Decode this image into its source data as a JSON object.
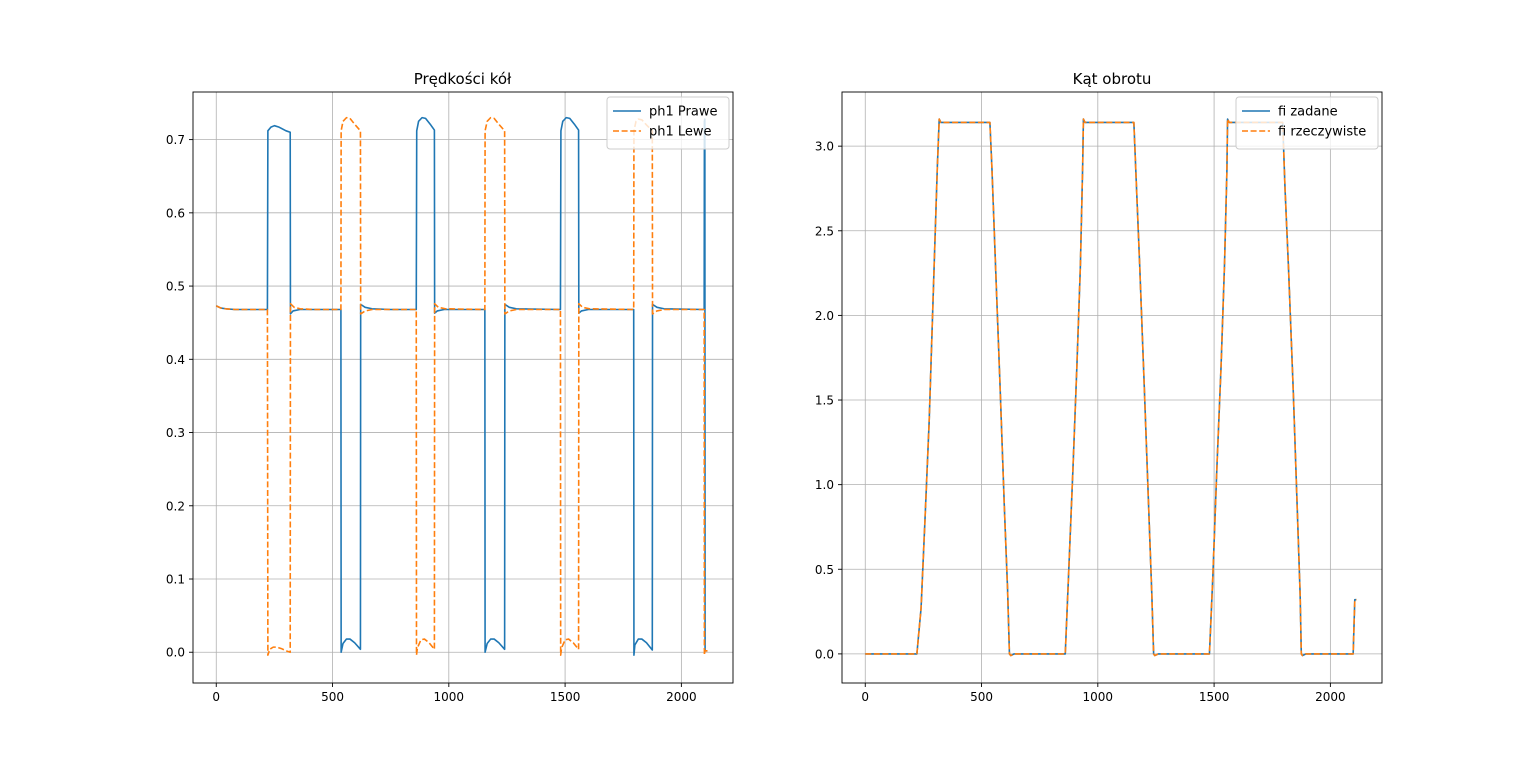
{
  "figure": {
    "background": "#ffffff"
  },
  "chart_data": [
    {
      "type": "line",
      "title": "Prędkości kół",
      "xlabel": "",
      "ylabel": "",
      "xlim": [
        -100,
        2222
      ],
      "ylim": [
        -0.042,
        0.765
      ],
      "xticks": [
        0,
        500,
        1000,
        1500,
        2000
      ],
      "xtick_labels": [
        "0",
        "500",
        "1000",
        "1500",
        "2000"
      ],
      "yticks": [
        0.0,
        0.1,
        0.2,
        0.3,
        0.4,
        0.5,
        0.6,
        0.7
      ],
      "ytick_labels": [
        "0.0",
        "0.1",
        "0.2",
        "0.3",
        "0.4",
        "0.5",
        "0.6",
        "0.7"
      ],
      "grid": true,
      "legend_position": "top-right",
      "series": [
        {
          "name": "ph1 Prawe",
          "color": "#1f77b4",
          "style": "solid",
          "points": [
            [
              0,
              0.473
            ],
            [
              20,
              0.47
            ],
            [
              40,
              0.469
            ],
            [
              80,
              0.468
            ],
            [
              220,
              0.468
            ],
            [
              222,
              0.712
            ],
            [
              235,
              0.717
            ],
            [
              250,
              0.719
            ],
            [
              270,
              0.717
            ],
            [
              300,
              0.712
            ],
            [
              318,
              0.71
            ],
            [
              319,
              0.462
            ],
            [
              330,
              0.466
            ],
            [
              360,
              0.468
            ],
            [
              536,
              0.468
            ],
            [
              537,
              0.0
            ],
            [
              545,
              0.012
            ],
            [
              560,
              0.018
            ],
            [
              575,
              0.018
            ],
            [
              595,
              0.013
            ],
            [
              620,
              0.004
            ],
            [
              621,
              0.475
            ],
            [
              640,
              0.471
            ],
            [
              670,
              0.469
            ],
            [
              750,
              0.468
            ],
            [
              860,
              0.468
            ],
            [
              862,
              0.712
            ],
            [
              870,
              0.725
            ],
            [
              885,
              0.73
            ],
            [
              900,
              0.729
            ],
            [
              920,
              0.721
            ],
            [
              938,
              0.713
            ],
            [
              939,
              0.463
            ],
            [
              950,
              0.466
            ],
            [
              980,
              0.468
            ],
            [
              1155,
              0.468
            ],
            [
              1156,
              0.0
            ],
            [
              1165,
              0.012
            ],
            [
              1180,
              0.018
            ],
            [
              1195,
              0.018
            ],
            [
              1215,
              0.013
            ],
            [
              1240,
              0.004
            ],
            [
              1241,
              0.475
            ],
            [
              1260,
              0.471
            ],
            [
              1290,
              0.469
            ],
            [
              1480,
              0.468
            ],
            [
              1482,
              0.712
            ],
            [
              1490,
              0.725
            ],
            [
              1505,
              0.73
            ],
            [
              1520,
              0.729
            ],
            [
              1540,
              0.721
            ],
            [
              1558,
              0.713
            ],
            [
              1559,
              0.463
            ],
            [
              1570,
              0.466
            ],
            [
              1600,
              0.468
            ],
            [
              1795,
              0.468
            ],
            [
              1796,
              -0.004
            ],
            [
              1800,
              0.01
            ],
            [
              1815,
              0.018
            ],
            [
              1830,
              0.018
            ],
            [
              1850,
              0.013
            ],
            [
              1875,
              0.003
            ],
            [
              1876,
              0.475
            ],
            [
              1895,
              0.471
            ],
            [
              1925,
              0.469
            ],
            [
              2098,
              0.468
            ],
            [
              2099,
              0.725
            ],
            [
              2101,
              0.728
            ],
            [
              2102,
              0.002
            ],
            [
              2112,
              0.002
            ]
          ]
        },
        {
          "name": "ph1 Lewe",
          "color": "#ff7f0e",
          "style": "dashed",
          "points": [
            [
              0,
              0.473
            ],
            [
              20,
              0.47
            ],
            [
              40,
              0.469
            ],
            [
              80,
              0.468
            ],
            [
              220,
              0.468
            ],
            [
              222,
              -0.004
            ],
            [
              230,
              0.004
            ],
            [
              245,
              0.007
            ],
            [
              260,
              0.007
            ],
            [
              280,
              0.005
            ],
            [
              300,
              0.002
            ],
            [
              318,
              0.0
            ],
            [
              319,
              0.476
            ],
            [
              335,
              0.471
            ],
            [
              360,
              0.469
            ],
            [
              420,
              0.468
            ],
            [
              536,
              0.468
            ],
            [
              537,
              0.712
            ],
            [
              545,
              0.725
            ],
            [
              560,
              0.73
            ],
            [
              575,
              0.729
            ],
            [
              595,
              0.721
            ],
            [
              620,
              0.712
            ],
            [
              621,
              0.462
            ],
            [
              640,
              0.466
            ],
            [
              670,
              0.468
            ],
            [
              860,
              0.468
            ],
            [
              861,
              -0.004
            ],
            [
              865,
              0.006
            ],
            [
              880,
              0.017
            ],
            [
              895,
              0.018
            ],
            [
              915,
              0.013
            ],
            [
              938,
              0.004
            ],
            [
              939,
              0.476
            ],
            [
              955,
              0.471
            ],
            [
              985,
              0.469
            ],
            [
              1155,
              0.468
            ],
            [
              1156,
              0.712
            ],
            [
              1165,
              0.725
            ],
            [
              1180,
              0.73
            ],
            [
              1195,
              0.729
            ],
            [
              1215,
              0.721
            ],
            [
              1240,
              0.712
            ],
            [
              1241,
              0.462
            ],
            [
              1260,
              0.466
            ],
            [
              1290,
              0.468
            ],
            [
              1480,
              0.468
            ],
            [
              1481,
              -0.004
            ],
            [
              1485,
              0.006
            ],
            [
              1500,
              0.017
            ],
            [
              1515,
              0.018
            ],
            [
              1535,
              0.013
            ],
            [
              1558,
              0.004
            ],
            [
              1559,
              0.476
            ],
            [
              1575,
              0.471
            ],
            [
              1605,
              0.469
            ],
            [
              1795,
              0.468
            ],
            [
              1796,
              0.712
            ],
            [
              1805,
              0.725
            ],
            [
              1815,
              0.728
            ],
            [
              1830,
              0.727
            ],
            [
              1850,
              0.72
            ],
            [
              1875,
              0.712
            ],
            [
              1876,
              0.462
            ],
            [
              1895,
              0.466
            ],
            [
              1925,
              0.468
            ],
            [
              2098,
              0.468
            ],
            [
              2099,
              -0.004
            ],
            [
              2101,
              0.002
            ],
            [
              2112,
              0.002
            ]
          ]
        }
      ]
    },
    {
      "type": "line",
      "title": "Kąt obrotu",
      "xlabel": "",
      "ylabel": "",
      "xlim": [
        -100,
        2222
      ],
      "ylim": [
        -0.172,
        3.32
      ],
      "xticks": [
        0,
        500,
        1000,
        1500,
        2000
      ],
      "xtick_labels": [
        "0",
        "500",
        "1000",
        "1500",
        "2000"
      ],
      "yticks": [
        0.0,
        0.5,
        1.0,
        1.5,
        2.0,
        2.5,
        3.0
      ],
      "ytick_labels": [
        "0.0",
        "0.5",
        "1.0",
        "1.5",
        "2.0",
        "2.5",
        "3.0"
      ],
      "grid": true,
      "legend_position": "top-right",
      "series": [
        {
          "name": "fi zadane",
          "color": "#1f77b4",
          "style": "solid",
          "points": [
            [
              0,
              0
            ],
            [
              222,
              0
            ],
            [
              240,
              0.27
            ],
            [
              258,
              0.83
            ],
            [
              275,
              1.38
            ],
            [
              295,
              2.24
            ],
            [
              310,
              2.88
            ],
            [
              318,
              3.16
            ],
            [
              325,
              3.14
            ],
            [
              536,
              3.14
            ],
            [
              545,
              2.86
            ],
            [
              560,
              2.3
            ],
            [
              580,
              1.57
            ],
            [
              598,
              0.87
            ],
            [
              612,
              0.38
            ],
            [
              620,
              0.0
            ],
            [
              626,
              -0.01
            ],
            [
              640,
              0.0
            ],
            [
              860,
              0.0
            ],
            [
              875,
              0.49
            ],
            [
              893,
              1.09
            ],
            [
              910,
              1.7
            ],
            [
              925,
              2.29
            ],
            [
              935,
              2.89
            ],
            [
              938,
              3.16
            ],
            [
              945,
              3.14
            ],
            [
              1155,
              3.14
            ],
            [
              1165,
              2.8
            ],
            [
              1180,
              2.3
            ],
            [
              1200,
              1.57
            ],
            [
              1218,
              0.89
            ],
            [
              1232,
              0.36
            ],
            [
              1240,
              0.0
            ],
            [
              1245,
              -0.01
            ],
            [
              1260,
              0.0
            ],
            [
              1480,
              0.0
            ],
            [
              1495,
              0.47
            ],
            [
              1512,
              1.1
            ],
            [
              1530,
              1.7
            ],
            [
              1545,
              2.31
            ],
            [
              1555,
              2.85
            ],
            [
              1558,
              3.16
            ],
            [
              1565,
              3.14
            ],
            [
              1795,
              3.14
            ],
            [
              1805,
              2.75
            ],
            [
              1820,
              2.28
            ],
            [
              1840,
              1.57
            ],
            [
              1858,
              0.84
            ],
            [
              1870,
              0.35
            ],
            [
              1875,
              0.0
            ],
            [
              1880,
              -0.01
            ],
            [
              1895,
              0.0
            ],
            [
              2098,
              0.0
            ],
            [
              2105,
              0.32
            ],
            [
              2112,
              0.32
            ]
          ]
        },
        {
          "name": "fi rzeczywiste",
          "color": "#ff7f0e",
          "style": "dashed",
          "points": [
            [
              0,
              0
            ],
            [
              222,
              0
            ],
            [
              240,
              0.27
            ],
            [
              258,
              0.83
            ],
            [
              275,
              1.38
            ],
            [
              295,
              2.24
            ],
            [
              310,
              2.88
            ],
            [
              318,
              3.16
            ],
            [
              325,
              3.14
            ],
            [
              536,
              3.14
            ],
            [
              545,
              2.86
            ],
            [
              560,
              2.3
            ],
            [
              580,
              1.57
            ],
            [
              598,
              0.87
            ],
            [
              612,
              0.38
            ],
            [
              620,
              0.0
            ],
            [
              626,
              -0.01
            ],
            [
              640,
              0.0
            ],
            [
              860,
              0.0
            ],
            [
              875,
              0.49
            ],
            [
              893,
              1.09
            ],
            [
              910,
              1.7
            ],
            [
              925,
              2.29
            ],
            [
              935,
              2.89
            ],
            [
              938,
              3.16
            ],
            [
              945,
              3.14
            ],
            [
              1155,
              3.14
            ],
            [
              1165,
              2.8
            ],
            [
              1180,
              2.3
            ],
            [
              1200,
              1.57
            ],
            [
              1218,
              0.89
            ],
            [
              1232,
              0.36
            ],
            [
              1240,
              0.0
            ],
            [
              1245,
              -0.01
            ],
            [
              1260,
              0.0
            ],
            [
              1480,
              0.0
            ],
            [
              1495,
              0.47
            ],
            [
              1512,
              1.1
            ],
            [
              1530,
              1.7
            ],
            [
              1545,
              2.31
            ],
            [
              1555,
              2.85
            ],
            [
              1558,
              3.16
            ],
            [
              1565,
              3.14
            ],
            [
              1795,
              3.14
            ],
            [
              1805,
              2.75
            ],
            [
              1820,
              2.28
            ],
            [
              1840,
              1.57
            ],
            [
              1858,
              0.84
            ],
            [
              1870,
              0.35
            ],
            [
              1875,
              0.0
            ],
            [
              1880,
              -0.01
            ],
            [
              1895,
              0.0
            ],
            [
              2098,
              0.0
            ],
            [
              2105,
              0.32
            ],
            [
              2112,
              0.32
            ]
          ]
        }
      ]
    }
  ]
}
